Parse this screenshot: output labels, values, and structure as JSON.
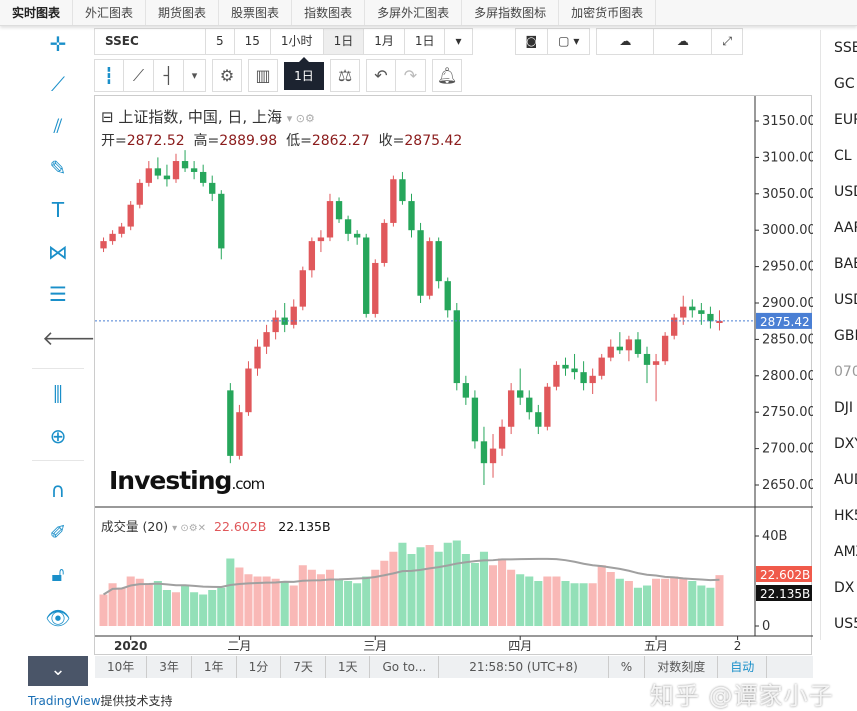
{
  "topnav": [
    "实时图表",
    "外汇图表",
    "期货图表",
    "股票图表",
    "指数图表",
    "多屏外汇图表",
    "多屏指数图标",
    "加密货币图表"
  ],
  "toolbar": {
    "symbol": "SSEC",
    "intervals": [
      "5",
      "15",
      "1小时",
      "1日",
      "1月",
      "1日"
    ],
    "tooltip": "1日"
  },
  "legend": {
    "title": "上证指数, 中国, 日, 上海",
    "open_label": "开=",
    "open": "2872.52",
    "high_label": "高=",
    "high": "2889.98",
    "low_label": "低=",
    "low": "2862.27",
    "close_label": "收=",
    "close": "2875.42",
    "volume_title": "成交量 (20)",
    "volume_value": "22.602B",
    "volume_ma": "22.135B"
  },
  "logo": {
    "text": "Investing",
    "suffix": ".com"
  },
  "colors": {
    "up": "#e0585b",
    "down": "#26a65b",
    "vol_up": "#f9b8b6",
    "vol_down": "#93e0b8",
    "ma": "#a0a0a0",
    "last_price": "#4a7fd4",
    "accent": "#1a8fc9"
  },
  "chart_data": {
    "type": "candlestick",
    "price_axis": {
      "ticks": [
        2650,
        2700,
        2750,
        2800,
        2850,
        2900,
        2950,
        3000,
        3050,
        3100,
        3150
      ],
      "labels": [
        "2650.00",
        "2700.00",
        "2750.00",
        "2800.00",
        "2850.00",
        "2900.00",
        "2950.00",
        "3000.00",
        "3050.00",
        "3100.00",
        "3150.00"
      ],
      "last_price": "2875.42"
    },
    "volume_axis": {
      "ticks": [
        0,
        40
      ],
      "labels": [
        "0",
        "40B"
      ],
      "last_volume": "22.602B",
      "last_ma": "22.135B"
    },
    "x_labels": [
      {
        "label": "2020",
        "index": 3
      },
      {
        "label": "二月",
        "index": 15
      },
      {
        "label": "三月",
        "index": 30
      },
      {
        "label": "四月",
        "index": 46
      },
      {
        "label": "五月",
        "index": 61
      },
      {
        "label": "2",
        "index": 70
      }
    ],
    "ohlcv": [
      [
        2975,
        2990,
        2970,
        2985,
        14
      ],
      [
        2985,
        3000,
        2980,
        2995,
        19
      ],
      [
        2995,
        3010,
        2990,
        3005,
        17
      ],
      [
        3005,
        3040,
        3000,
        3035,
        22
      ],
      [
        3035,
        3070,
        3030,
        3065,
        21
      ],
      [
        3065,
        3095,
        3060,
        3085,
        19
      ],
      [
        3085,
        3100,
        3070,
        3075,
        20
      ],
      [
        3075,
        3090,
        3060,
        3070,
        16
      ],
      [
        3070,
        3105,
        3065,
        3095,
        15
      ],
      [
        3095,
        3110,
        3080,
        3085,
        18
      ],
      [
        3085,
        3095,
        3070,
        3080,
        15
      ],
      [
        3080,
        3090,
        3060,
        3065,
        14
      ],
      [
        3065,
        3075,
        3040,
        3050,
        16
      ],
      [
        3050,
        3055,
        2960,
        2975,
        17
      ],
      [
        2780,
        2790,
        2680,
        2690,
        30
      ],
      [
        2690,
        2760,
        2685,
        2750,
        26
      ],
      [
        2750,
        2820,
        2745,
        2810,
        23
      ],
      [
        2810,
        2850,
        2800,
        2840,
        22
      ],
      [
        2840,
        2870,
        2830,
        2860,
        22
      ],
      [
        2860,
        2890,
        2850,
        2880,
        21
      ],
      [
        2880,
        2900,
        2860,
        2870,
        20
      ],
      [
        2870,
        2905,
        2865,
        2895,
        18
      ],
      [
        2895,
        2950,
        2890,
        2945,
        27
      ],
      [
        2945,
        2990,
        2935,
        2985,
        25
      ],
      [
        2985,
        3000,
        2970,
        2990,
        23
      ],
      [
        2990,
        3050,
        2985,
        3040,
        25
      ],
      [
        3040,
        3045,
        3010,
        3015,
        21
      ],
      [
        3015,
        3020,
        2985,
        2995,
        20
      ],
      [
        2995,
        3000,
        2980,
        2990,
        19
      ],
      [
        2990,
        2995,
        2880,
        2885,
        22
      ],
      [
        2885,
        2960,
        2880,
        2955,
        25
      ],
      [
        2955,
        3015,
        2950,
        3010,
        29
      ],
      [
        3010,
        3075,
        3005,
        3070,
        33
      ],
      [
        3070,
        3080,
        3035,
        3040,
        37
      ],
      [
        3040,
        3050,
        2990,
        3000,
        32
      ],
      [
        3000,
        3010,
        2900,
        2910,
        35
      ],
      [
        2910,
        2990,
        2905,
        2985,
        36
      ],
      [
        2985,
        2990,
        2920,
        2930,
        33
      ],
      [
        2930,
        2935,
        2880,
        2890,
        37
      ],
      [
        2890,
        2900,
        2780,
        2790,
        38
      ],
      [
        2790,
        2800,
        2760,
        2770,
        32
      ],
      [
        2770,
        2780,
        2700,
        2710,
        28
      ],
      [
        2710,
        2730,
        2650,
        2680,
        33
      ],
      [
        2680,
        2720,
        2660,
        2700,
        27
      ],
      [
        2700,
        2740,
        2690,
        2730,
        30
      ],
      [
        2730,
        2790,
        2720,
        2780,
        25
      ],
      [
        2780,
        2810,
        2760,
        2770,
        23
      ],
      [
        2770,
        2780,
        2740,
        2750,
        22
      ],
      [
        2750,
        2760,
        2720,
        2730,
        20
      ],
      [
        2730,
        2790,
        2725,
        2785,
        22
      ],
      [
        2785,
        2820,
        2780,
        2815,
        22
      ],
      [
        2815,
        2825,
        2800,
        2810,
        20
      ],
      [
        2810,
        2830,
        2795,
        2805,
        19
      ],
      [
        2805,
        2820,
        2780,
        2790,
        19
      ],
      [
        2790,
        2810,
        2775,
        2800,
        19
      ],
      [
        2800,
        2830,
        2795,
        2825,
        27
      ],
      [
        2825,
        2850,
        2820,
        2840,
        24
      ],
      [
        2840,
        2860,
        2830,
        2835,
        21
      ],
      [
        2835,
        2855,
        2820,
        2850,
        20
      ],
      [
        2850,
        2860,
        2825,
        2830,
        17
      ],
      [
        2830,
        2840,
        2790,
        2815,
        18
      ],
      [
        2815,
        2830,
        2765,
        2820,
        21
      ],
      [
        2820,
        2860,
        2815,
        2855,
        21
      ],
      [
        2855,
        2885,
        2850,
        2880,
        22
      ],
      [
        2880,
        2910,
        2870,
        2895,
        21
      ],
      [
        2895,
        2905,
        2880,
        2890,
        20
      ],
      [
        2890,
        2900,
        2870,
        2885,
        18
      ],
      [
        2885,
        2895,
        2865,
        2875,
        17
      ],
      [
        2872.52,
        2889.98,
        2862.27,
        2875.42,
        22.602
      ]
    ]
  },
  "bottombar": [
    "10年",
    "3年",
    "1年",
    "1分",
    "7天",
    "1天",
    "Go to...",
    "21:58:50 (UTC+8)",
    "%",
    "对数刻度",
    "自动"
  ],
  "rightlist": [
    "SSE",
    "GC",
    "EUR",
    "CL",
    "USD",
    "AAP",
    "BAB",
    "USD",
    "GBP",
    "070",
    "DJI",
    "DXY",
    "AUD",
    "HK5",
    "AMZ",
    "DX",
    "US5"
  ],
  "footer": {
    "brand": "TradingView",
    "text": "提供技术支持"
  },
  "watermark": "知乎 @谭家小子"
}
